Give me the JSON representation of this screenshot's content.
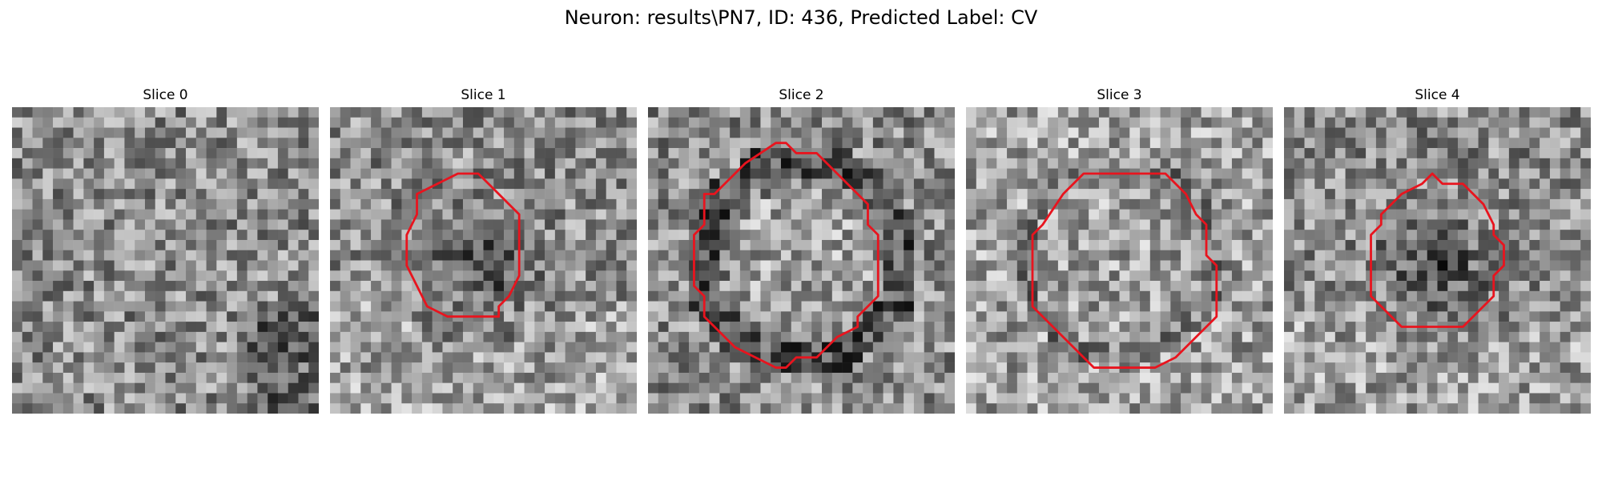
{
  "figure": {
    "title": "Neuron: results\\PN7, ID: 436, Predicted Label: CV"
  },
  "slices": [
    {
      "label": "Slice 0",
      "has_contour": false,
      "dark_region": "diffuse",
      "seed": 11
    },
    {
      "label": "Slice 1",
      "has_contour": true,
      "dark_region": "small-dark",
      "seed": 23
    },
    {
      "label": "Slice 2",
      "has_contour": true,
      "dark_region": "ring",
      "seed": 37
    },
    {
      "label": "Slice 3",
      "has_contour": true,
      "dark_region": "ring-light",
      "seed": 41
    },
    {
      "label": "Slice 4",
      "has_contour": true,
      "dark_region": "small-dark",
      "seed": 53
    }
  ],
  "colors": {
    "contour": "#e8141e",
    "background": "#ffffff"
  }
}
